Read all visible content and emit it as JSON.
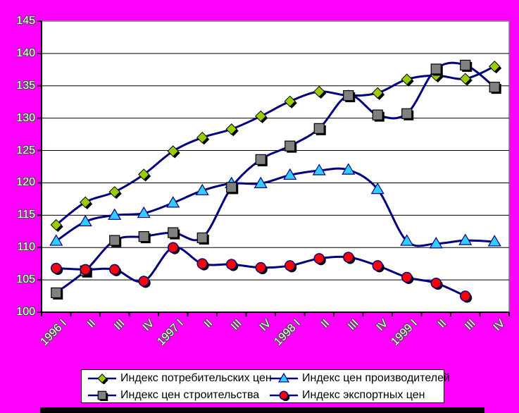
{
  "chart_data": {
    "type": "line",
    "smoothed": true,
    "categories": [
      "1996 I",
      "II",
      "III",
      "IV",
      "1997 I",
      "II",
      "III",
      "IV",
      "1998 I",
      "II",
      "III",
      "IV",
      "1999 I",
      "II",
      "III",
      "IV"
    ],
    "series": [
      {
        "name": "Индекс потребительских цен",
        "marker": "diamond",
        "marker_color": "#99CC00",
        "line_color": "#000080",
        "values": [
          113.5,
          117,
          118.6,
          121.3,
          124.9,
          127,
          128.3,
          130.3,
          132.6,
          134.1,
          133.5,
          133.9,
          136,
          136.6,
          136.1,
          138
        ]
      },
      {
        "name": "Индекс цен производителей",
        "marker": "triangle",
        "marker_color": "#33CCFF",
        "line_color": "#000080",
        "values": [
          111,
          114,
          115,
          115.3,
          116.9,
          118.8,
          119.9,
          119.9,
          121.2,
          121.9,
          122,
          119,
          111,
          110.6,
          111.1,
          110.9
        ]
      },
      {
        "name": "Индекс цен строительства",
        "marker": "square",
        "marker_color": "#808080",
        "line_color": "#000080",
        "values": [
          103,
          106.4,
          111.1,
          111.7,
          112.3,
          111.5,
          119.3,
          123.6,
          125.7,
          128.4,
          133.5,
          130.5,
          130.7,
          137.6,
          138.2,
          134.8
        ]
      },
      {
        "name": "Индекс экспортных цен",
        "marker": "circle",
        "marker_color": "#FF0000",
        "line_color": "#000080",
        "values": [
          106.8,
          106.6,
          106.6,
          104.8,
          110,
          107.5,
          107.4,
          106.9,
          107.2,
          108.3,
          108.5,
          107.2,
          105.4,
          104.5,
          102.5,
          null
        ]
      }
    ],
    "ylim": [
      100,
      145
    ],
    "y_ticks": [
      100,
      105,
      110,
      115,
      120,
      125,
      130,
      135,
      140,
      145
    ],
    "grid": true,
    "legend_position": "bottom",
    "title": "",
    "xlabel": "",
    "ylabel": ""
  },
  "colors": {
    "background": "#FF00FF",
    "plot_background": "#FFFFFF",
    "plot_border": "#808080",
    "gridline": "#000000",
    "axis": "#000000",
    "tick_label_fill": "#FFFFFF",
    "line": "#000080",
    "legend_background": "#FFFFFF",
    "legend_border": "#000000",
    "bottom_bar": "#000000"
  }
}
